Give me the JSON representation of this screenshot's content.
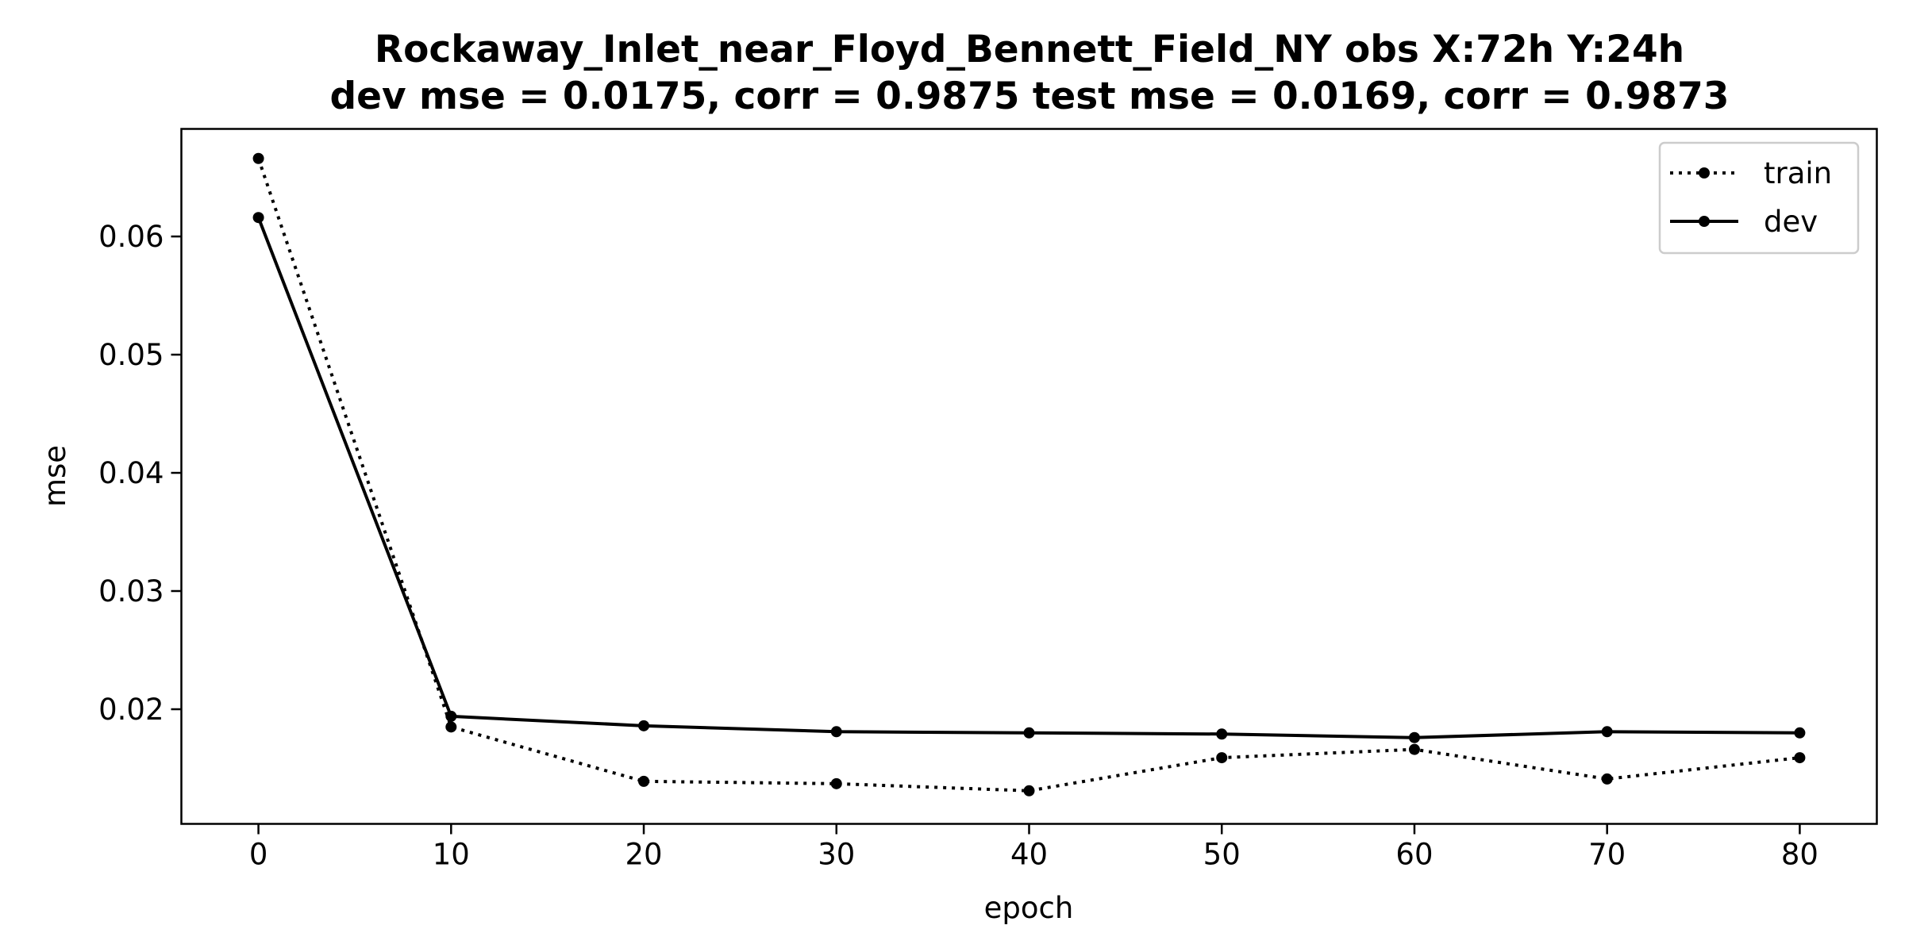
{
  "chart_data": {
    "type": "line",
    "title": "Rockaway_Inlet_near_Floyd_Bennett_Field_NY   obs   X:72h   Y:24h",
    "subtitle": "dev mse = 0.0175, corr = 0.9875   test mse = 0.0169, corr = 0.9873",
    "xlabel": "epoch",
    "ylabel": "mse",
    "xlim": [
      -4,
      84
    ],
    "ylim": [
      0.0103,
      0.0691
    ],
    "xticks": [
      0,
      10,
      20,
      30,
      40,
      50,
      60,
      70,
      80
    ],
    "yticks": [
      0.02,
      0.03,
      0.04,
      0.05,
      0.06
    ],
    "xtick_labels": [
      "0",
      "10",
      "20",
      "30",
      "40",
      "50",
      "60",
      "70",
      "80"
    ],
    "ytick_labels": [
      "0.02",
      "0.03",
      "0.04",
      "0.05",
      "0.06"
    ],
    "grid": false,
    "legend_position": "top-right",
    "x": [
      0,
      10,
      20,
      30,
      40,
      50,
      60,
      70,
      80
    ],
    "series": [
      {
        "name": "train",
        "style": "dotted",
        "color": "#000000",
        "values": [
          0.0666,
          0.0185,
          0.0139,
          0.0137,
          0.0131,
          0.0159,
          0.0166,
          0.0141,
          0.0159
        ]
      },
      {
        "name": "dev",
        "style": "solid",
        "color": "#000000",
        "values": [
          0.0616,
          0.0194,
          0.0186,
          0.0181,
          0.018,
          0.0179,
          0.0176,
          0.0181,
          0.018
        ]
      }
    ]
  }
}
